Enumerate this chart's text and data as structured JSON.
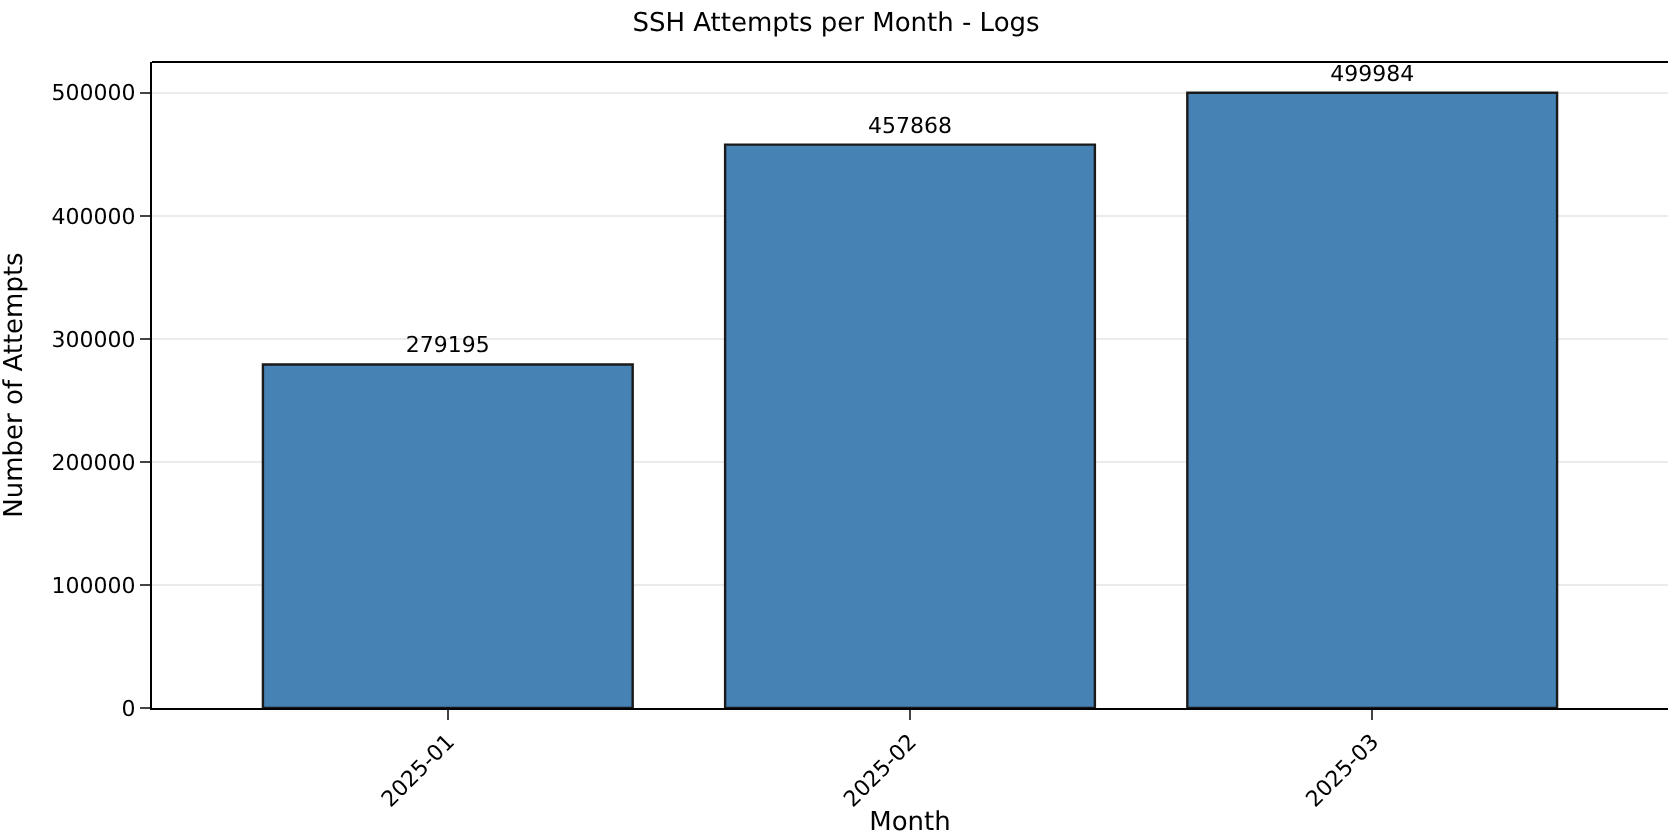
{
  "chart_data": {
    "type": "bar",
    "title": "SSH Attempts per Month - Logs",
    "xlabel": "Month",
    "ylabel": "Number of Attempts",
    "categories": [
      "2025-01",
      "2025-02",
      "2025-03"
    ],
    "values": [
      279195,
      457868,
      499984
    ],
    "color": "#4682b4",
    "ylim": [
      0,
      525000
    ],
    "yticks": [
      0,
      100000,
      200000,
      300000,
      400000,
      500000
    ],
    "grid": "y",
    "data_labels": true
  }
}
